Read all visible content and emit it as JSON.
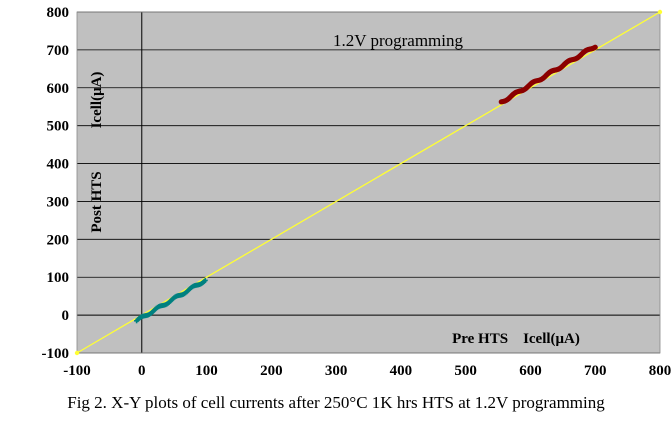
{
  "chart_data": {
    "type": "scatter",
    "title": "1.2V programming",
    "xlabel": "Pre HTS    Icell(μA)",
    "ylabel_top": "Icell(μA)",
    "ylabel_bottom": "Post HTS",
    "xlim": [
      -100,
      800
    ],
    "ylim": [
      -100,
      800
    ],
    "x_ticks": [
      -100,
      0,
      100,
      200,
      300,
      400,
      500,
      600,
      700,
      800
    ],
    "y_ticks": [
      -100,
      0,
      100,
      200,
      300,
      400,
      500,
      600,
      700,
      800
    ],
    "grid": "horizontal",
    "background_color": "#c0c0c0",
    "reference_line": {
      "from": [
        -100,
        -100
      ],
      "to": [
        800,
        800
      ],
      "color": "#ffff33"
    },
    "series": [
      {
        "color": "#008080",
        "marker": "plus",
        "x_range": [
          -8,
          98
        ],
        "y_range": [
          -15,
          92
        ],
        "count": 60
      },
      {
        "color": "#8b0000",
        "marker": "dot",
        "x_range": [
          555,
          700
        ],
        "y_range": [
          562,
          710
        ],
        "count": 80
      }
    ]
  },
  "caption": "Fig 2. X-Y plots of cell currents after 250°C 1K hrs HTS at 1.2V programming"
}
